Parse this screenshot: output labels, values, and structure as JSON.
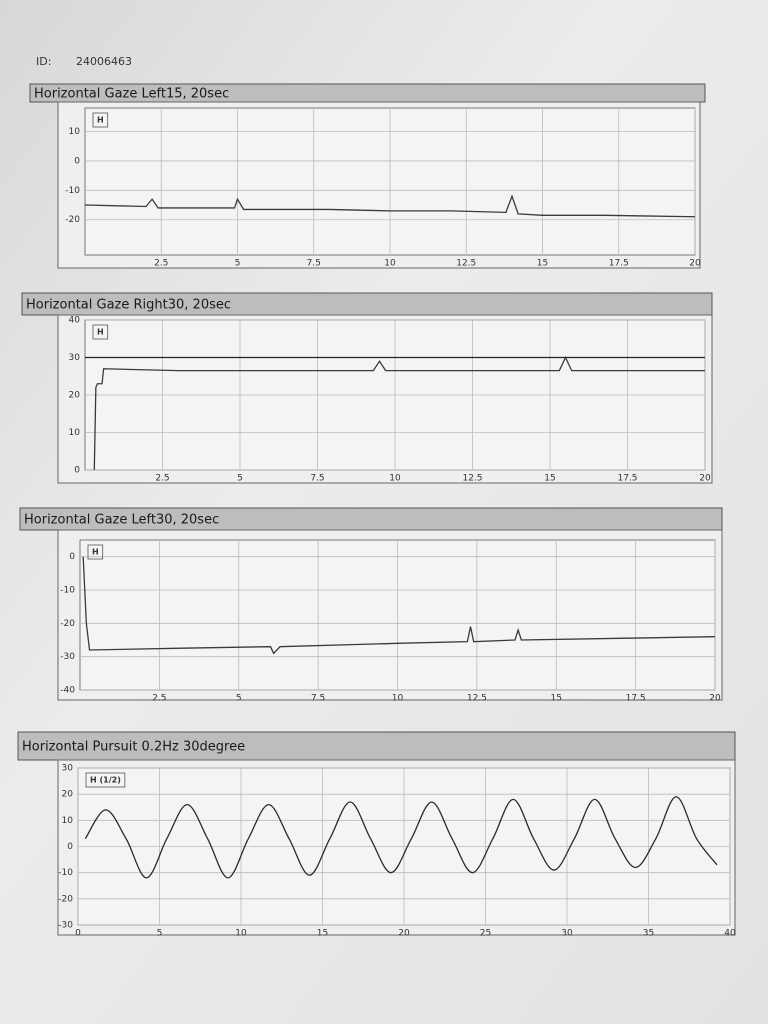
{
  "header": {
    "id_label": "ID:",
    "id": "24006463"
  },
  "chart_data": [
    {
      "type": "line",
      "title": "Horizontal Gaze Left15, 20sec",
      "annotation": "H",
      "xlim": [
        0,
        20
      ],
      "xticks": [
        2.5,
        5,
        7.5,
        10,
        12.5,
        15,
        17.5,
        20
      ],
      "ylim": [
        -32,
        18
      ],
      "yticks": [
        10,
        0,
        -10,
        -20
      ],
      "grid": true,
      "series": [
        {
          "color": "#3a3a3a",
          "x": [
            0,
            2,
            2.2,
            2.4,
            4,
            4.9,
            5,
            5.2,
            8,
            10,
            12,
            13.8,
            14,
            14.2,
            15,
            17,
            20
          ],
          "values": [
            -15,
            -15.5,
            -13,
            -16,
            -16,
            -16,
            -13,
            -16.5,
            -16.5,
            -17,
            -17,
            -17.5,
            -12,
            -18,
            -18.5,
            -18.5,
            -19
          ]
        }
      ]
    },
    {
      "type": "line",
      "title": "Horizontal Gaze Right30, 20sec",
      "annotation": "H",
      "xlim": [
        0,
        20
      ],
      "xticks": [
        2.5,
        5,
        7.5,
        10,
        12.5,
        15,
        17.5,
        20
      ],
      "ylim": [
        0,
        40
      ],
      "yticks": [
        0,
        10,
        20,
        30,
        40
      ],
      "grid": true,
      "series": [
        {
          "color": "#222222",
          "x": [
            0,
            20
          ],
          "values": [
            30,
            30
          ]
        },
        {
          "color": "#3a3a3a",
          "x": [
            0.3,
            0.35,
            0.4,
            0.55,
            0.6,
            3,
            5,
            9.3,
            9.5,
            9.7,
            12,
            15.3,
            15.5,
            15.7,
            18,
            20
          ],
          "values": [
            0,
            22,
            23,
            23,
            27,
            26.5,
            26.5,
            26.5,
            29,
            26.5,
            26.5,
            26.5,
            30,
            26.5,
            26.5,
            26.5
          ]
        }
      ]
    },
    {
      "type": "line",
      "title": "Horizontal Gaze Left30, 20sec",
      "annotation": "H",
      "xlim": [
        0,
        20
      ],
      "xticks": [
        2.5,
        5,
        7.5,
        10,
        12.5,
        15,
        17.5,
        20
      ],
      "ylim": [
        -40,
        5
      ],
      "yticks": [
        0,
        -10,
        -20,
        -30,
        -40
      ],
      "grid": true,
      "series": [
        {
          "color": "#3a3a3a",
          "x": [
            0.1,
            0.2,
            0.3,
            3,
            6,
            6.1,
            6.3,
            10,
            12.2,
            12.3,
            12.4,
            13.7,
            13.8,
            13.9,
            17,
            20
          ],
          "values": [
            0,
            -20,
            -28,
            -27.5,
            -27,
            -29,
            -27,
            -26,
            -25.5,
            -21,
            -25.5,
            -25,
            -22,
            -25,
            -24.5,
            -24
          ]
        }
      ]
    },
    {
      "type": "line",
      "title": "Horizontal Pursuit 0.2Hz 30degree",
      "annotation": "H (1/2)",
      "xlim": [
        0,
        40
      ],
      "xticks": [
        0,
        5,
        10,
        15,
        20,
        25,
        30,
        35,
        40
      ],
      "ylim": [
        -30,
        30
      ],
      "yticks": [
        30,
        20,
        10,
        0,
        -10,
        -20,
        -30
      ],
      "grid": true,
      "smooth": true,
      "series": [
        {
          "color": "#2a2a2a",
          "x": [
            0.45,
            1.7,
            2.95,
            4.2,
            5.45,
            6.7,
            7.95,
            9.2,
            10.45,
            11.7,
            12.95,
            14.2,
            15.45,
            16.7,
            17.95,
            19.2,
            20.45,
            21.7,
            22.95,
            24.2,
            25.45,
            26.7,
            27.95,
            29.2,
            30.45,
            31.7,
            32.95,
            34.2,
            35.45,
            36.7,
            37.95,
            39.2
          ],
          "values": [
            3,
            14,
            3,
            -12,
            3,
            16,
            3,
            -12,
            3,
            16,
            3,
            -11,
            3,
            17,
            3,
            -10,
            3,
            17,
            3,
            -10,
            3,
            18,
            3,
            -9,
            3,
            18,
            3,
            -8,
            3,
            19,
            3,
            -7
          ]
        }
      ]
    }
  ]
}
